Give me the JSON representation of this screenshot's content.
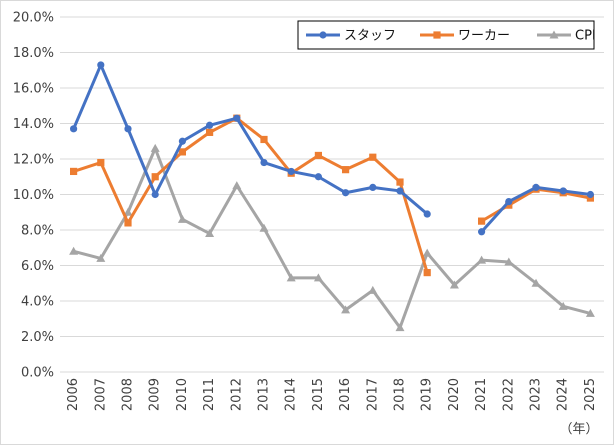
{
  "chart_data": {
    "type": "line",
    "title": "",
    "xlabel": "",
    "ylabel": "",
    "x_unit_label": "（年）",
    "categories": [
      "2006",
      "2007",
      "2008",
      "2009",
      "2010",
      "2011",
      "2012",
      "2013",
      "2014",
      "2015",
      "2016",
      "2017",
      "2018",
      "2019",
      "2020",
      "2021",
      "2022",
      "2023",
      "2024",
      "2025"
    ],
    "y_ticks": [
      "0.0%",
      "2.0%",
      "4.0%",
      "6.0%",
      "8.0%",
      "10.0%",
      "12.0%",
      "14.0%",
      "16.0%",
      "18.0%",
      "20.0%"
    ],
    "ylim": [
      0,
      20
    ],
    "grid": true,
    "legend_position": "top-right",
    "series": [
      {
        "name": "スタッフ",
        "color": "#4472c4",
        "marker": "circle",
        "values": [
          13.7,
          17.3,
          13.7,
          10.0,
          13.0,
          13.9,
          14.3,
          11.8,
          11.3,
          11.0,
          10.1,
          10.4,
          10.2,
          8.9,
          null,
          7.9,
          9.6,
          10.4,
          10.2,
          10.0
        ]
      },
      {
        "name": "ワーカー",
        "color": "#ed7d31",
        "marker": "square",
        "values": [
          11.3,
          11.8,
          8.4,
          11.0,
          12.4,
          13.5,
          14.3,
          13.1,
          11.2,
          12.2,
          11.4,
          12.1,
          10.7,
          5.6,
          null,
          8.5,
          9.4,
          10.3,
          10.1,
          9.8
        ]
      },
      {
        "name": "CPI",
        "color": "#a5a5a5",
        "marker": "triangle",
        "values": [
          6.8,
          6.4,
          9.0,
          12.6,
          8.6,
          7.8,
          10.5,
          8.1,
          5.3,
          5.3,
          3.5,
          4.6,
          2.5,
          6.7,
          4.9,
          6.3,
          6.2,
          5.0,
          3.7,
          3.3
        ]
      }
    ]
  }
}
